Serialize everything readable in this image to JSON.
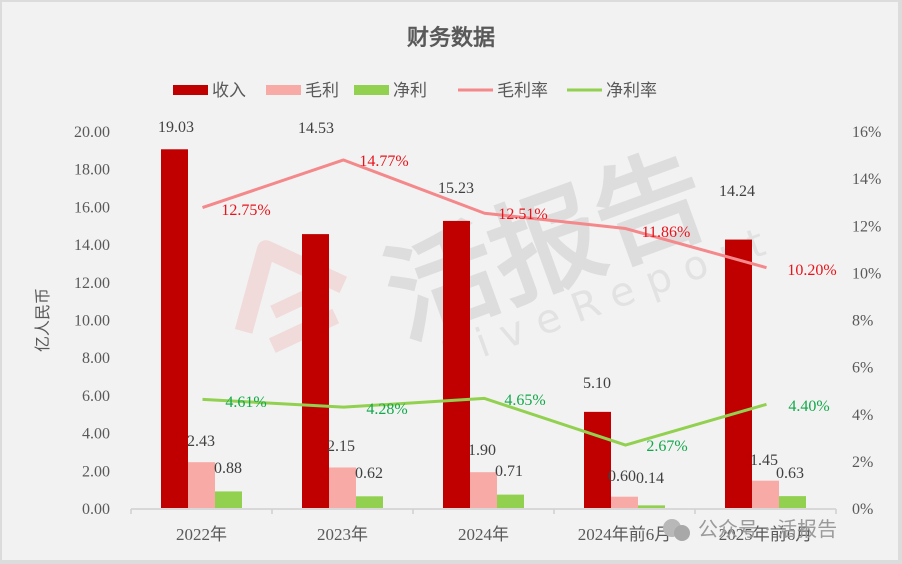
{
  "chart_data": {
    "type": "bar",
    "title": "财务数据",
    "categories": [
      "2022年",
      "2023年",
      "2024年",
      "2024年前6月",
      "2025年前6月"
    ],
    "series": [
      {
        "name": "收入",
        "type": "bar",
        "axis": "left",
        "color": "#c00000",
        "values": [
          19.03,
          14.53,
          15.23,
          5.1,
          14.24
        ],
        "labels": [
          "19.03",
          "14.53",
          "15.23",
          "5.10",
          "14.24"
        ]
      },
      {
        "name": "毛利",
        "type": "bar",
        "axis": "left",
        "color": "#f8aba6",
        "values": [
          2.43,
          2.15,
          1.9,
          0.6,
          1.45
        ],
        "labels": [
          "2.43",
          "2.15",
          "1.90",
          "0.60",
          "1.45"
        ]
      },
      {
        "name": "净利",
        "type": "bar",
        "axis": "left",
        "color": "#92d050",
        "values": [
          0.88,
          0.62,
          0.71,
          0.14,
          0.63
        ],
        "labels": [
          "0.88",
          "0.62",
          "0.71",
          "0.14",
          "0.63"
        ]
      },
      {
        "name": "毛利率",
        "type": "line",
        "axis": "right",
        "color": "#f4888a",
        "values": [
          12.75,
          14.77,
          12.51,
          11.86,
          10.2
        ],
        "labels": [
          "12.75%",
          "14.77%",
          "12.51%",
          "11.86%",
          "10.20%"
        ]
      },
      {
        "name": "净利率",
        "type": "line",
        "axis": "right",
        "color": "#92d050",
        "values": [
          4.61,
          4.28,
          4.65,
          2.67,
          4.4
        ],
        "labels": [
          "4.61%",
          "4.28%",
          "4.65%",
          "2.67%",
          "4.40%"
        ]
      }
    ],
    "xlabel": "",
    "ylabel": "亿人民币",
    "ylim": [
      0,
      20
    ],
    "yticks": [
      "0.00",
      "2.00",
      "4.00",
      "6.00",
      "8.00",
      "10.00",
      "12.00",
      "14.00",
      "16.00",
      "18.00",
      "20.00"
    ],
    "y2label": "",
    "y2lim": [
      0,
      16
    ],
    "y2ticks": [
      "0%",
      "2%",
      "4%",
      "6%",
      "8%",
      "10%",
      "12%",
      "14%",
      "16%"
    ],
    "grid": false,
    "legend_position": "top"
  },
  "watermark": {
    "main": "活报告",
    "sub": "LiveReport",
    "footer": "公众号 · 活报告"
  }
}
